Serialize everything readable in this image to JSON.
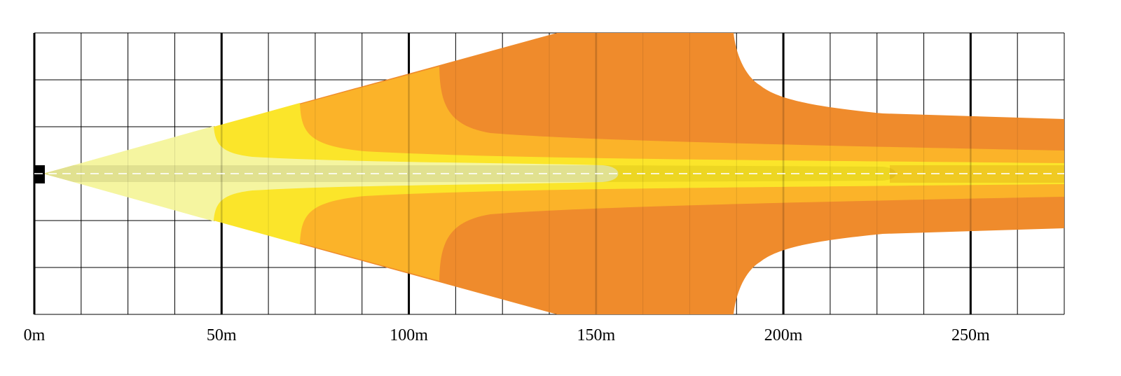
{
  "chart_data": {
    "type": "area",
    "xlim": [
      0,
      275
    ],
    "xticks": [
      {
        "value": 0,
        "label": "0m"
      },
      {
        "value": 50,
        "label": "50m"
      },
      {
        "value": 100,
        "label": "100m"
      },
      {
        "value": 150,
        "label": "150m"
      },
      {
        "value": 200,
        "label": "200m"
      },
      {
        "value": 250,
        "label": "250m"
      }
    ],
    "grid": true
  }
}
